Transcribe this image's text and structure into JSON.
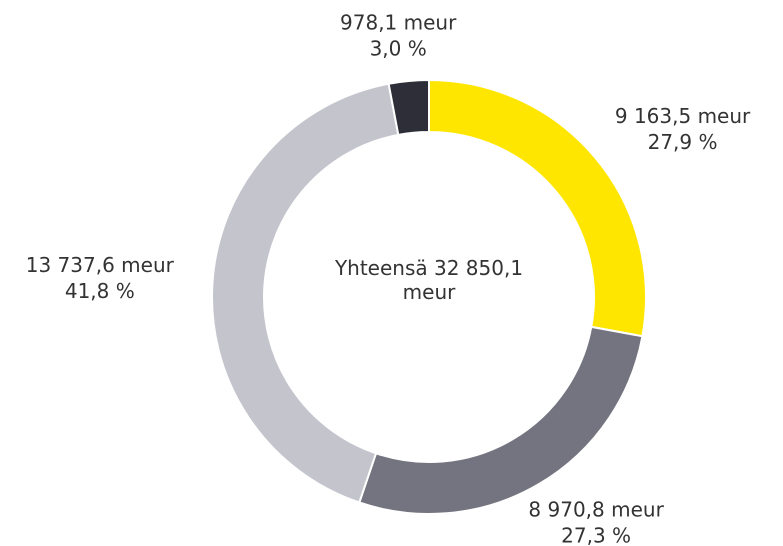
{
  "chart_data": {
    "type": "donut",
    "center_label": "Yhteensä 32 850,1 meur",
    "categories": [
      null,
      null,
      null,
      null
    ],
    "values": [
      9163.5,
      8970.8,
      13737.6,
      978.1
    ],
    "value_labels": [
      "9 163,5 meur",
      "8 970,8 meur",
      "13 737,6 meur",
      "978,1 meur"
    ],
    "percents": [
      27.9,
      27.3,
      41.8,
      3.0
    ],
    "percent_labels": [
      "27,9 %",
      "27,3 %",
      "41,8 %",
      "3,0 %"
    ],
    "colors": [
      "#ffe600",
      "#747480",
      "#c4c4cd",
      "#2e2e38"
    ]
  }
}
